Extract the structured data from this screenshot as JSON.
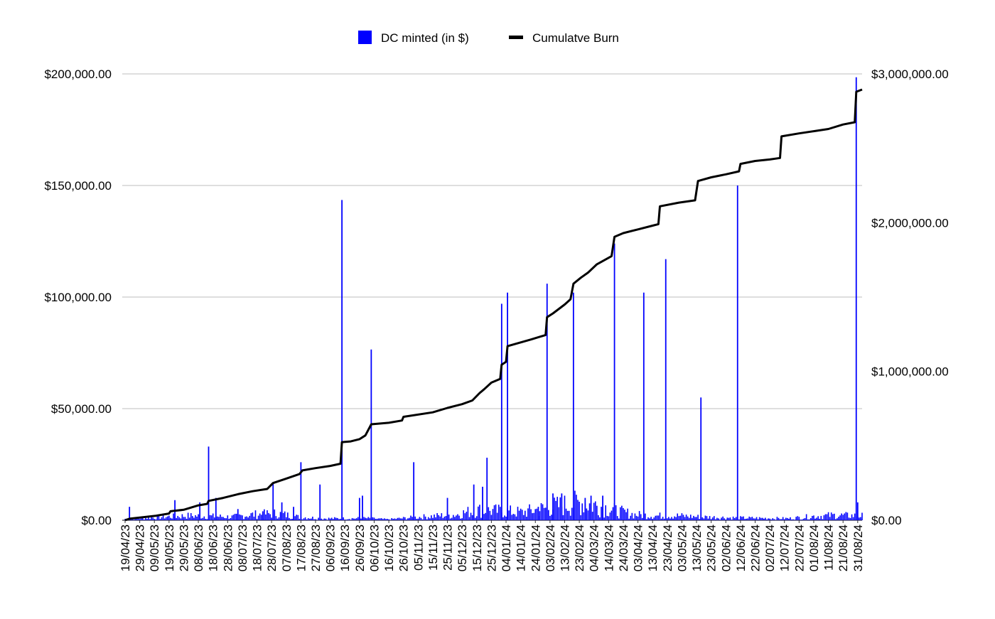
{
  "chart_data": {
    "type": "bar+line",
    "legend": {
      "position": "top-center",
      "items": [
        {
          "label": "DC minted (in $)",
          "color": "#0000ff",
          "marker": "square"
        },
        {
          "label": "Cumulatve Burn",
          "color": "#000000",
          "marker": "line"
        }
      ]
    },
    "grid": true,
    "x_range": [
      "19/04/23",
      "03/09/24"
    ],
    "x_tick_labels": [
      "19/04/23",
      "29/04/23",
      "09/05/23",
      "19/05/23",
      "29/05/23",
      "08/06/23",
      "18/06/23",
      "28/06/23",
      "08/07/23",
      "18/07/23",
      "28/07/23",
      "07/08/23",
      "17/08/23",
      "27/08/23",
      "06/09/23",
      "16/09/23",
      "26/09/23",
      "06/10/23",
      "16/10/23",
      "26/10/23",
      "05/11/23",
      "15/11/23",
      "25/11/23",
      "05/12/23",
      "15/12/23",
      "25/12/23",
      "04/01/24",
      "14/01/24",
      "24/01/24",
      "03/02/24",
      "13/02/24",
      "23/02/24",
      "04/03/24",
      "14/03/24",
      "24/03/24",
      "03/04/24",
      "13/04/24",
      "23/04/24",
      "03/05/24",
      "13/05/24",
      "23/05/24",
      "02/06/24",
      "12/06/24",
      "22/06/24",
      "02/07/24",
      "12/07/24",
      "22/07/24",
      "01/08/24",
      "11/08/24",
      "21/08/24",
      "31/08/24"
    ],
    "y_left": {
      "ticks": [
        "$0.00",
        "$50,000.00",
        "$100,000.00",
        "$150,000.00",
        "$200,000.00"
      ],
      "range": [
        0,
        200000
      ]
    },
    "y_right": {
      "ticks": [
        "$0.00",
        "$1,000,000.00",
        "$2,000,000.00",
        "$3,000,000.00"
      ],
      "range": [
        0,
        3000000
      ]
    },
    "series": [
      {
        "name": "DC minted (in $)",
        "axis": "left",
        "kind": "bar",
        "spikes": [
          [
            "22/04/23",
            6000
          ],
          [
            "23/05/23",
            9000
          ],
          [
            "09/06/23",
            8000
          ],
          [
            "15/06/23",
            33000
          ],
          [
            "20/06/23",
            10000
          ],
          [
            "05/07/23",
            5000
          ],
          [
            "22/07/23",
            4000
          ],
          [
            "29/07/23",
            17000
          ],
          [
            "04/08/23",
            8000
          ],
          [
            "12/08/23",
            6000
          ],
          [
            "17/08/23",
            26000
          ],
          [
            "30/08/23",
            16000
          ],
          [
            "14/09/23",
            143500
          ],
          [
            "26/09/23",
            10000
          ],
          [
            "28/09/23",
            11000
          ],
          [
            "04/10/23",
            76500
          ],
          [
            "02/11/23",
            26000
          ],
          [
            "25/11/23",
            10000
          ],
          [
            "13/12/23",
            16000
          ],
          [
            "19/12/23",
            15000
          ],
          [
            "22/12/23",
            28000
          ],
          [
            "01/01/24",
            97000
          ],
          [
            "05/01/24",
            102000
          ],
          [
            "26/01/24",
            6000
          ],
          [
            "01/02/24",
            106000
          ],
          [
            "05/02/24",
            12000
          ],
          [
            "11/02/24",
            12000
          ],
          [
            "19/02/24",
            102000
          ],
          [
            "27/02/24",
            10000
          ],
          [
            "02/03/24",
            11000
          ],
          [
            "10/03/24",
            11000
          ],
          [
            "18/03/24",
            124000
          ],
          [
            "07/04/24",
            102000
          ],
          [
            "22/04/24",
            117000
          ],
          [
            "16/05/24",
            55000
          ],
          [
            "10/06/24",
            150000
          ],
          [
            "30/08/24",
            198500
          ],
          [
            "31/08/24",
            8000
          ]
        ],
        "noise": [
          [
            "19/04/23",
            600
          ],
          [
            "01/05/23",
            900
          ],
          [
            "15/05/23",
            1500
          ],
          [
            "01/06/23",
            2000
          ],
          [
            "15/06/23",
            1800
          ],
          [
            "01/07/23",
            1500
          ],
          [
            "15/07/23",
            2500
          ],
          [
            "01/08/23",
            3000
          ],
          [
            "15/08/23",
            1500
          ],
          [
            "01/09/23",
            800
          ],
          [
            "15/09/23",
            800
          ],
          [
            "01/10/23",
            900
          ],
          [
            "15/10/23",
            400
          ],
          [
            "01/11/23",
            1200
          ],
          [
            "15/11/23",
            1800
          ],
          [
            "01/12/23",
            2500
          ],
          [
            "15/12/23",
            4500
          ],
          [
            "01/01/24",
            4000
          ],
          [
            "15/01/24",
            3500
          ],
          [
            "01/02/24",
            5500
          ],
          [
            "15/02/24",
            7000
          ],
          [
            "25/02/24",
            8000
          ],
          [
            "10/03/24",
            6000
          ],
          [
            "20/03/24",
            4000
          ],
          [
            "01/04/24",
            2500
          ],
          [
            "15/04/24",
            2000
          ],
          [
            "01/05/24",
            2000
          ],
          [
            "15/05/24",
            1500
          ],
          [
            "01/06/24",
            1200
          ],
          [
            "15/06/24",
            1000
          ],
          [
            "01/07/24",
            900
          ],
          [
            "15/07/24",
            800
          ],
          [
            "01/08/24",
            1800
          ],
          [
            "15/08/24",
            2200
          ],
          [
            "31/08/24",
            2000
          ]
        ]
      },
      {
        "name": "Cumulatve Burn",
        "axis": "right",
        "kind": "line",
        "points": [
          [
            "19/04/23",
            0
          ],
          [
            "22/04/23",
            10000
          ],
          [
            "10/05/23",
            30000
          ],
          [
            "19/05/23",
            45000
          ],
          [
            "20/05/23",
            60000
          ],
          [
            "29/05/23",
            70000
          ],
          [
            "08/06/23",
            100000
          ],
          [
            "14/06/23",
            110000
          ],
          [
            "15/06/23",
            130000
          ],
          [
            "25/06/23",
            150000
          ],
          [
            "05/07/23",
            175000
          ],
          [
            "15/07/23",
            195000
          ],
          [
            "25/07/23",
            210000
          ],
          [
            "29/07/23",
            250000
          ],
          [
            "07/08/23",
            280000
          ],
          [
            "16/08/23",
            310000
          ],
          [
            "18/08/23",
            335000
          ],
          [
            "27/08/23",
            350000
          ],
          [
            "06/09/23",
            365000
          ],
          [
            "13/09/23",
            380000
          ],
          [
            "14/09/23",
            525000
          ],
          [
            "20/09/23",
            530000
          ],
          [
            "26/09/23",
            545000
          ],
          [
            "30/09/23",
            570000
          ],
          [
            "04/10/23",
            645000
          ],
          [
            "16/10/23",
            655000
          ],
          [
            "25/10/23",
            670000
          ],
          [
            "26/10/23",
            695000
          ],
          [
            "15/11/23",
            725000
          ],
          [
            "25/11/23",
            755000
          ],
          [
            "05/12/23",
            780000
          ],
          [
            "12/12/23",
            805000
          ],
          [
            "17/12/23",
            855000
          ],
          [
            "20/12/23",
            880000
          ],
          [
            "25/12/23",
            925000
          ],
          [
            "31/12/23",
            950000
          ],
          [
            "01/01/24",
            1045000
          ],
          [
            "04/01/24",
            1065000
          ],
          [
            "05/01/24",
            1170000
          ],
          [
            "14/01/24",
            1195000
          ],
          [
            "21/01/24",
            1215000
          ],
          [
            "31/01/24",
            1245000
          ],
          [
            "01/02/24",
            1365000
          ],
          [
            "05/02/24",
            1390000
          ],
          [
            "13/02/24",
            1450000
          ],
          [
            "17/02/24",
            1485000
          ],
          [
            "19/02/24",
            1590000
          ],
          [
            "24/02/24",
            1630000
          ],
          [
            "29/02/24",
            1665000
          ],
          [
            "06/03/24",
            1720000
          ],
          [
            "16/03/24",
            1775000
          ],
          [
            "18/03/24",
            1905000
          ],
          [
            "24/03/24",
            1930000
          ],
          [
            "03/04/24",
            1955000
          ],
          [
            "13/04/24",
            1980000
          ],
          [
            "17/04/24",
            1990000
          ],
          [
            "18/04/24",
            2110000
          ],
          [
            "01/05/24",
            2135000
          ],
          [
            "12/05/24",
            2150000
          ],
          [
            "14/05/24",
            2280000
          ],
          [
            "23/05/24",
            2305000
          ],
          [
            "02/06/24",
            2325000
          ],
          [
            "11/06/24",
            2345000
          ],
          [
            "12/06/24",
            2395000
          ],
          [
            "22/06/24",
            2415000
          ],
          [
            "02/07/24",
            2425000
          ],
          [
            "09/07/24",
            2435000
          ],
          [
            "10/07/24",
            2580000
          ],
          [
            "22/07/24",
            2600000
          ],
          [
            "01/08/24",
            2615000
          ],
          [
            "11/08/24",
            2630000
          ],
          [
            "21/08/24",
            2660000
          ],
          [
            "29/08/24",
            2675000
          ],
          [
            "30/08/24",
            2880000
          ],
          [
            "03/09/24",
            2895000
          ]
        ]
      }
    ]
  }
}
